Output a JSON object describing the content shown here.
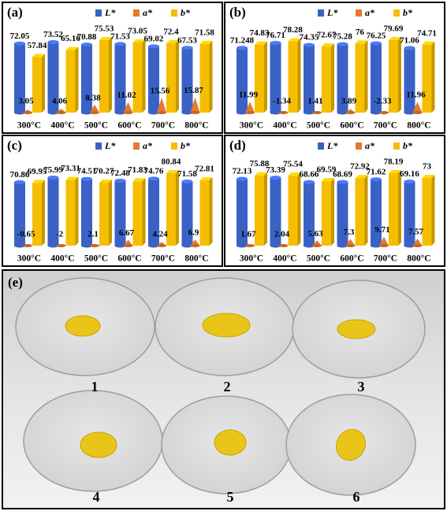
{
  "chart_data": [
    {
      "type": "bar3d",
      "panel": "(a)",
      "categories": [
        "300°C",
        "400°C",
        "500°C",
        "600°C",
        "700°C",
        "800°C"
      ],
      "series": [
        {
          "name": "L*",
          "color": "#3a62c6",
          "values": [
            72.05,
            73.52,
            70.88,
            71.53,
            69.02,
            67.53
          ]
        },
        {
          "name": "a*",
          "color": "#e8782a",
          "values": [
            3.05,
            4.06,
            8.38,
            11.02,
            15.56,
            15.87
          ]
        },
        {
          "name": "b*",
          "color": "#f5be00",
          "values": [
            57.84,
            65.16,
            75.53,
            73.05,
            72.4,
            71.58
          ]
        }
      ]
    },
    {
      "type": "bar3d",
      "panel": "(b)",
      "categories": [
        "300°C",
        "400°C",
        "500°C",
        "600°C",
        "700°C",
        "800°C"
      ],
      "series": [
        {
          "name": "L*",
          "color": "#3a62c6",
          "values": [
            71.248,
            76.71,
            74.35,
            75.28,
            76.25,
            71.06
          ]
        },
        {
          "name": "a*",
          "color": "#e8782a",
          "values": [
            11.99,
            -1.34,
            1.41,
            3.89,
            -2.33,
            11.96
          ]
        },
        {
          "name": "b*",
          "color": "#f5be00",
          "values": [
            74.83,
            78.28,
            72.67,
            76,
            79.69,
            74.71
          ]
        }
      ]
    },
    {
      "type": "bar3d",
      "panel": "(c)",
      "categories": [
        "300°C",
        "400°C",
        "500°C",
        "600°C",
        "700°C",
        "800°C"
      ],
      "series": [
        {
          "name": "L*",
          "color": "#3a62c6",
          "values": [
            70.86,
            75.99,
            74.51,
            72.48,
            74.76,
            71.58
          ]
        },
        {
          "name": "a*",
          "color": "#e8782a",
          "values": [
            -0.65,
            -2,
            2.1,
            6.67,
            4.24,
            6.9
          ]
        },
        {
          "name": "b*",
          "color": "#f5be00",
          "values": [
            69.95,
            73.31,
            70.27,
            71.83,
            80.84,
            72.81
          ]
        }
      ]
    },
    {
      "type": "bar3d",
      "panel": "(d)",
      "categories": [
        "300°C",
        "400°C",
        "500°C",
        "600°C",
        "700°C",
        "800°C"
      ],
      "series": [
        {
          "name": "L*",
          "color": "#3a62c6",
          "values": [
            72.13,
            73.39,
            68.66,
            68.69,
            71.62,
            69.16
          ]
        },
        {
          "name": "a*",
          "color": "#e8782a",
          "values": [
            1.67,
            2.04,
            5.63,
            7.3,
            9.71,
            7.57
          ]
        },
        {
          "name": "b*",
          "color": "#f5be00",
          "values": [
            75.88,
            75.54,
            69.59,
            72.92,
            78.19,
            73
          ]
        }
      ]
    }
  ],
  "photo": {
    "panel": "(e)",
    "samples": [
      "1",
      "2",
      "3",
      "4",
      "5",
      "6"
    ]
  }
}
